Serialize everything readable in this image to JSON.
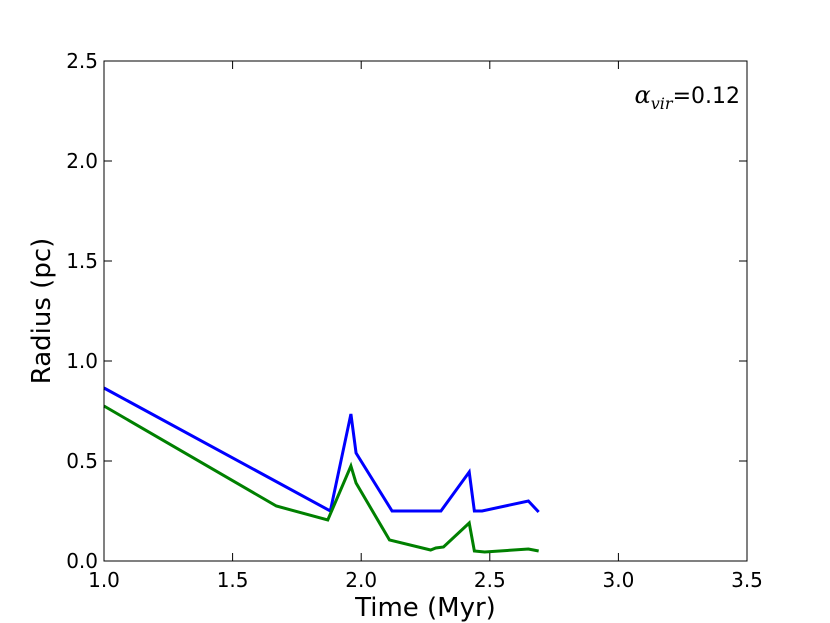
{
  "chart_data": {
    "type": "line",
    "title": "",
    "xlabel": "Time (Myr)",
    "ylabel": "Radius (pc)",
    "xlim": [
      1.0,
      3.5
    ],
    "ylim": [
      0.0,
      2.5
    ],
    "xticks": [
      1.0,
      1.5,
      2.0,
      2.5,
      3.0,
      3.5
    ],
    "yticks": [
      0.0,
      0.5,
      1.0,
      1.5,
      2.0,
      2.5
    ],
    "xtick_labels": [
      "1.0",
      "1.5",
      "2.0",
      "2.5",
      "3.0",
      "3.5"
    ],
    "ytick_labels": [
      "0.0",
      "0.5",
      "1.0",
      "1.5",
      "2.0",
      "2.5"
    ],
    "grid": false,
    "legend": "none",
    "annotation": {
      "symbol": "α",
      "subscript": "vir",
      "equals": "=",
      "value": "0.12",
      "placement": "top-right"
    },
    "series": [
      {
        "color": "#0000ff",
        "x": [
          1.0,
          1.88,
          1.96,
          1.98,
          2.12,
          2.31,
          2.42,
          2.44,
          2.47,
          2.65,
          2.69
        ],
        "y": [
          0.865,
          0.25,
          0.735,
          0.54,
          0.25,
          0.25,
          0.445,
          0.25,
          0.25,
          0.3,
          0.245
        ]
      },
      {
        "color": "#008000",
        "x": [
          1.0,
          1.67,
          1.87,
          1.96,
          1.98,
          2.11,
          2.27,
          2.29,
          2.32,
          2.42,
          2.44,
          2.48,
          2.65,
          2.69
        ],
        "y": [
          0.775,
          0.275,
          0.205,
          0.475,
          0.39,
          0.105,
          0.055,
          0.065,
          0.07,
          0.19,
          0.05,
          0.045,
          0.06,
          0.05
        ]
      }
    ]
  }
}
